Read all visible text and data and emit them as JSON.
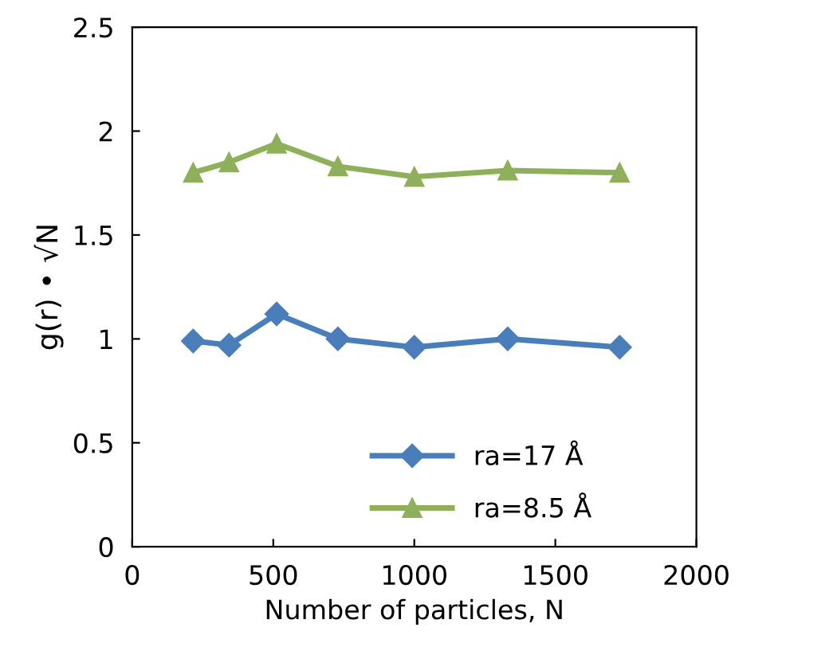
{
  "chart_data": {
    "type": "line",
    "xlabel": "Number of particles, N",
    "ylabel": "g(r) • √N",
    "x": [
      216,
      343,
      512,
      729,
      1000,
      1331,
      1728
    ],
    "series": [
      {
        "name": "ra=17 Å",
        "color": "#4a7ebb",
        "marker": "diamond",
        "values": [
          0.99,
          0.97,
          1.12,
          1.0,
          0.96,
          1.0,
          0.96
        ]
      },
      {
        "name": "ra=8.5 Å",
        "color": "#8fb05a",
        "marker": "triangle",
        "values": [
          1.8,
          1.85,
          1.94,
          1.83,
          1.78,
          1.81,
          1.8
        ]
      }
    ],
    "xlim": [
      0,
      2000
    ],
    "xticks": [
      0,
      500,
      1000,
      1500,
      2000
    ],
    "ylim": [
      0,
      2.5
    ],
    "yticks": [
      0,
      0.5,
      1,
      1.5,
      2,
      2.5
    ],
    "grid": false,
    "legend": "bottom",
    "line_style": "solid"
  }
}
